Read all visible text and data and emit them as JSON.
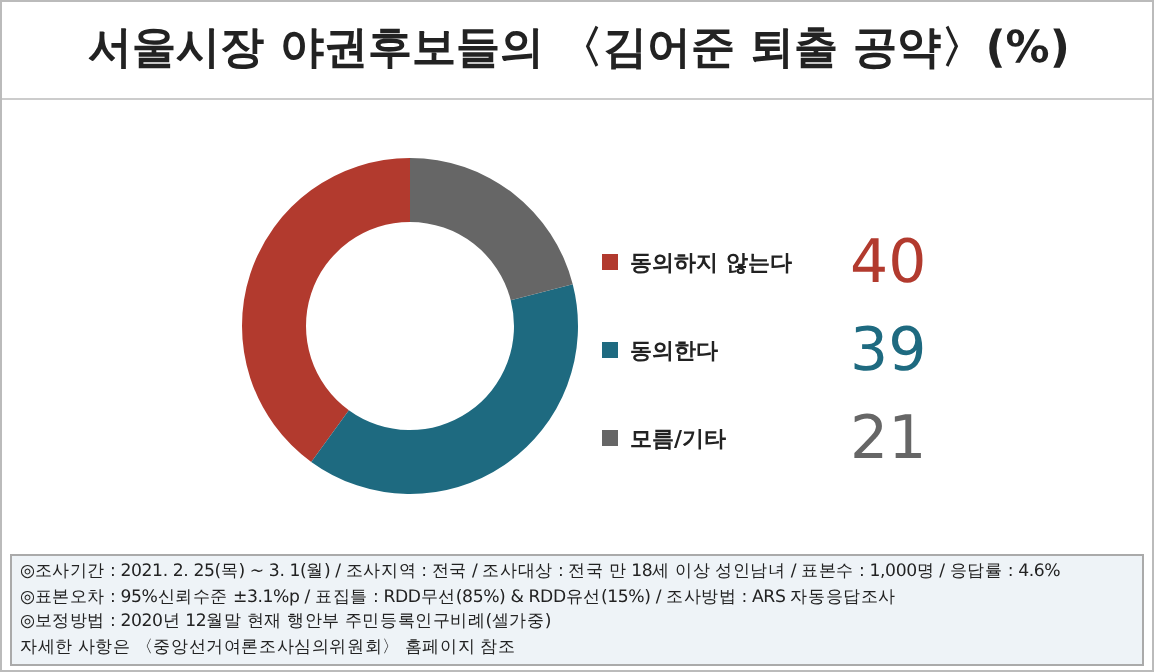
{
  "chart_data": {
    "type": "donut",
    "title": "서울시장 야권후보들의 〈김어준 퇴출 공약〉(%)",
    "categories": [
      "동의하지 않는다",
      "동의한다",
      "모름/기타"
    ],
    "values": [
      40,
      39,
      21
    ],
    "colors": [
      "#b23a2e",
      "#1e6a80",
      "#666666"
    ],
    "data_labels": true,
    "legend": "right",
    "annotations": [
      "◎조사기간 : 2021. 2. 25(목) ~ 3. 1(월) / 조사지역 : 전국 / 조사대상 : 전국 만 18세 이상 성인남녀 / 표본수 : 1,000명 / 응답률 : 4.6%",
      "◎표본오차 : 95%신뢰수준 ±3.1%p  / 표집틀 : RDD무선(85%) & RDD유선(15%) / 조사방법 : ARS 자동응답조사",
      "◎보정방법 : 2020년 12월말 현재 행안부 주민등록인구비례(셀가중)",
      "자세한 사항은 〈중앙선거여론조사심의위원회〉 홈페이지 참조"
    ]
  }
}
